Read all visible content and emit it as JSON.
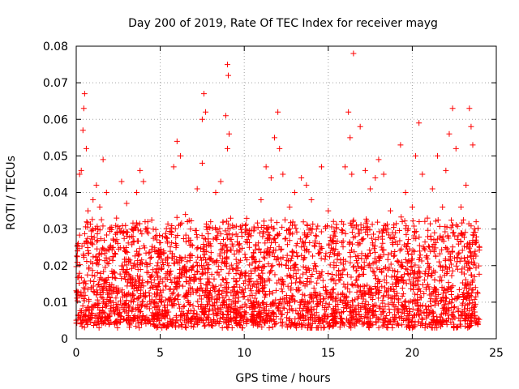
{
  "chart_data": {
    "type": "scatter",
    "title": "Day 200 of 2019, Rate Of TEC Index for receiver mayg",
    "xlabel": "GPS time / hours",
    "ylabel": "ROTI / TECUs",
    "xlim": [
      0,
      25
    ],
    "ylim": [
      0,
      0.08
    ],
    "x_ticks": [
      0,
      5,
      10,
      15,
      20,
      25
    ],
    "x_tick_labels": [
      "0",
      "5",
      "10",
      "15",
      "20",
      "25"
    ],
    "y_ticks": [
      0,
      0.01,
      0.02,
      0.03,
      0.04,
      0.05,
      0.06,
      0.07,
      0.08
    ],
    "y_tick_labels": [
      "0",
      "0.01",
      "0.02",
      "0.03",
      "0.04",
      "0.05",
      "0.06",
      "0.07",
      "0.08"
    ],
    "grid": true,
    "marker": "+",
    "marker_color": "#ff0000",
    "series": [
      {
        "name": "ROTI",
        "points": [
          [
            0.1,
            0.012
          ],
          [
            0.2,
            0.045
          ],
          [
            0.3,
            0.046
          ],
          [
            0.4,
            0.057
          ],
          [
            0.45,
            0.063
          ],
          [
            0.5,
            0.067
          ],
          [
            0.6,
            0.052
          ],
          [
            0.7,
            0.035
          ],
          [
            0.9,
            0.028
          ],
          [
            1.0,
            0.038
          ],
          [
            1.2,
            0.042
          ],
          [
            1.4,
            0.036
          ],
          [
            1.6,
            0.049
          ],
          [
            1.8,
            0.04
          ],
          [
            2.0,
            0.03
          ],
          [
            2.2,
            0.025
          ],
          [
            2.4,
            0.033
          ],
          [
            2.7,
            0.043
          ],
          [
            3.0,
            0.037
          ],
          [
            3.3,
            0.03
          ],
          [
            3.6,
            0.04
          ],
          [
            3.8,
            0.046
          ],
          [
            4.0,
            0.043
          ],
          [
            4.1,
            0.032
          ],
          [
            3.75,
            0.003
          ],
          [
            4.4,
            0.022
          ],
          [
            4.8,
            0.018
          ],
          [
            5.2,
            0.024
          ],
          [
            5.5,
            0.02
          ],
          [
            5.8,
            0.047
          ],
          [
            6.0,
            0.054
          ],
          [
            6.2,
            0.05
          ],
          [
            6.5,
            0.034
          ],
          [
            6.8,
            0.03
          ],
          [
            7.2,
            0.041
          ],
          [
            7.5,
            0.06
          ],
          [
            7.6,
            0.067
          ],
          [
            7.7,
            0.062
          ],
          [
            7.5,
            0.048
          ],
          [
            8.0,
            0.032
          ],
          [
            8.3,
            0.04
          ],
          [
            8.6,
            0.043
          ],
          [
            8.9,
            0.061
          ],
          [
            9.0,
            0.075
          ],
          [
            9.05,
            0.072
          ],
          [
            9.1,
            0.056
          ],
          [
            9.0,
            0.052
          ],
          [
            9.3,
            0.031
          ],
          [
            9.6,
            0.028
          ],
          [
            9.9,
            0.003
          ],
          [
            10.3,
            0.025
          ],
          [
            10.6,
            0.03
          ],
          [
            11.0,
            0.038
          ],
          [
            11.3,
            0.047
          ],
          [
            11.6,
            0.044
          ],
          [
            11.8,
            0.055
          ],
          [
            12.0,
            0.062
          ],
          [
            12.1,
            0.052
          ],
          [
            12.3,
            0.045
          ],
          [
            12.7,
            0.036
          ],
          [
            13.0,
            0.04
          ],
          [
            13.4,
            0.044
          ],
          [
            13.7,
            0.042
          ],
          [
            14.0,
            0.038
          ],
          [
            14.3,
            0.03
          ],
          [
            14.6,
            0.047
          ],
          [
            15.0,
            0.035
          ],
          [
            15.4,
            0.028
          ],
          [
            15.8,
            0.032
          ],
          [
            16.0,
            0.047
          ],
          [
            16.2,
            0.062
          ],
          [
            16.3,
            0.055
          ],
          [
            16.4,
            0.045
          ],
          [
            16.5,
            0.078
          ],
          [
            16.9,
            0.058
          ],
          [
            17.2,
            0.046
          ],
          [
            17.5,
            0.041
          ],
          [
            17.8,
            0.044
          ],
          [
            18.0,
            0.049
          ],
          [
            18.3,
            0.045
          ],
          [
            18.7,
            0.035
          ],
          [
            19.0,
            0.029
          ],
          [
            19.3,
            0.053
          ],
          [
            19.6,
            0.04
          ],
          [
            20.0,
            0.036
          ],
          [
            20.2,
            0.05
          ],
          [
            20.4,
            0.059
          ],
          [
            20.6,
            0.045
          ],
          [
            20.9,
            0.033
          ],
          [
            21.2,
            0.041
          ],
          [
            21.5,
            0.05
          ],
          [
            21.8,
            0.036
          ],
          [
            22.0,
            0.046
          ],
          [
            22.2,
            0.056
          ],
          [
            22.4,
            0.063
          ],
          [
            22.6,
            0.052
          ],
          [
            22.9,
            0.036
          ],
          [
            23.2,
            0.042
          ],
          [
            23.4,
            0.063
          ],
          [
            23.5,
            0.058
          ],
          [
            23.6,
            0.053
          ],
          [
            23.8,
            0.032
          ],
          [
            24.0,
            0.025
          ],
          [
            20.0,
            0.003
          ],
          [
            23.3,
            0.003
          ],
          [
            16.5,
            0.004
          ],
          [
            12.5,
            0.004
          ]
        ],
        "dense_band": {
          "x_range": [
            0,
            24
          ],
          "typical_min": 0.004,
          "typical_max": 0.032,
          "note": "thousands of points form a dense band, mostly 0.005–0.03 TECUs"
        }
      }
    ]
  }
}
